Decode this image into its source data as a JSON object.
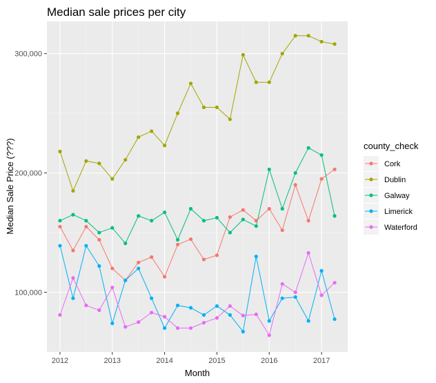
{
  "chart_data": {
    "type": "line",
    "title": "Median sale prices per city",
    "xlabel": "Month",
    "ylabel": "Median Sale Price (???)",
    "x_tick_labels": [
      "2012",
      "2013",
      "2014",
      "2015",
      "2016",
      "2017"
    ],
    "y_tick_labels": [
      "100,000",
      "200,000",
      "300,000"
    ],
    "y_ticks": [
      100000,
      200000,
      300000
    ],
    "xlim": [
      2011.75,
      2017.5
    ],
    "ylim": [
      50000,
      327000
    ],
    "grid": true,
    "legend_title": "county_check",
    "legend_position": "right",
    "x": [
      2012.0,
      2012.25,
      2012.5,
      2012.75,
      2013.0,
      2013.25,
      2013.5,
      2013.75,
      2014.0,
      2014.25,
      2014.5,
      2014.75,
      2015.0,
      2015.25,
      2015.5,
      2015.75,
      2016.0,
      2016.25,
      2016.5,
      2016.75,
      2017.0,
      2017.25
    ],
    "series": [
      {
        "name": "Cork",
        "color": "#F8766D",
        "values": [
          155000,
          135000,
          155000,
          144000,
          120000,
          110000,
          125000,
          129500,
          113000,
          140000,
          144500,
          127500,
          131000,
          163000,
          169000,
          160000,
          170000,
          152000,
          190000,
          160000,
          195000,
          203000
        ]
      },
      {
        "name": "Dublin",
        "color": "#A3A500",
        "values": [
          218000,
          185000,
          210000,
          208000,
          195000,
          211000,
          230000,
          235000,
          223000,
          250000,
          275000,
          255000,
          255000,
          245000,
          299000,
          276000,
          276000,
          300000,
          315000,
          315000,
          310000,
          308000
        ]
      },
      {
        "name": "Galway",
        "color": "#00BF7D",
        "values": [
          160000,
          165000,
          160000,
          150000,
          154000,
          141000,
          164000,
          160000,
          167000,
          144000,
          170000,
          160000,
          162500,
          150000,
          161000,
          155500,
          203000,
          170000,
          200000,
          221000,
          215000,
          164000
        ]
      },
      {
        "name": "Limerick",
        "color": "#00B0F6",
        "values": [
          139000,
          95000,
          139000,
          122000,
          74000,
          110000,
          120000,
          95000,
          70000,
          89000,
          87000,
          81000,
          88500,
          81000,
          67000,
          130000,
          76000,
          95000,
          96000,
          76000,
          118000,
          77500
        ]
      },
      {
        "name": "Waterford",
        "color": "#E76BF3",
        "values": [
          81000,
          112000,
          89000,
          85000,
          104000,
          71000,
          75000,
          83000,
          79500,
          70000,
          70000,
          74500,
          78500,
          88500,
          80500,
          81500,
          64000,
          107000,
          100000,
          133000,
          97500,
          108000
        ]
      }
    ]
  }
}
